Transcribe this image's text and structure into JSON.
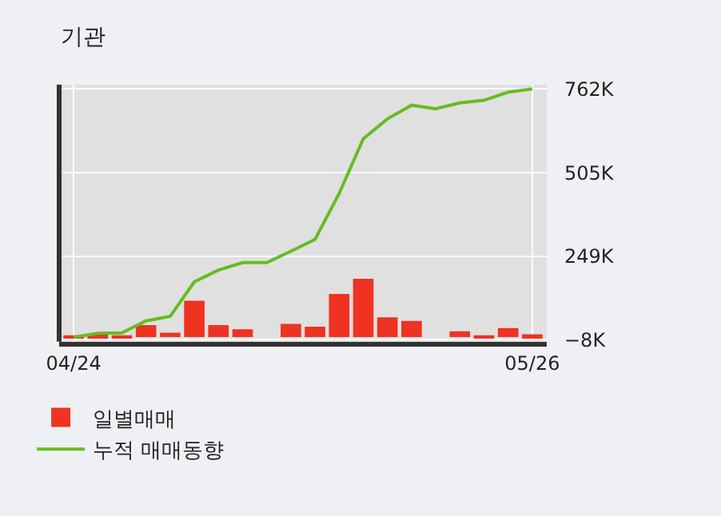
{
  "chart_data": {
    "type": "bar",
    "title": "기관",
    "categories": [
      "04/24",
      null,
      null,
      null,
      null,
      null,
      null,
      null,
      null,
      null,
      null,
      null,
      null,
      null,
      null,
      null,
      null,
      null,
      null,
      "05/26"
    ],
    "series": [
      {
        "name": "일별매매",
        "color": "#ee3322",
        "values": [
          6,
          9,
          6,
          37,
          14,
          112,
          37,
          24,
          0,
          41,
          32,
          133,
          179,
          61,
          50,
          0,
          18,
          6,
          28,
          9
        ]
      },
      {
        "name": "누적 매매동향",
        "type": "line",
        "color": "#66bb22",
        "values": [
          0,
          12,
          13,
          50,
          64,
          170,
          206,
          229,
          229,
          264,
          300,
          441,
          609,
          670,
          712,
          701,
          719,
          727,
          752,
          762
        ]
      }
    ],
    "ylim": [
      -14,
      775
    ],
    "yticks": [
      {
        "value": 762,
        "label": "762K"
      },
      {
        "value": 505,
        "label": "505K"
      },
      {
        "value": 249,
        "label": "249K"
      },
      {
        "value": -8,
        "label": "−8K"
      }
    ],
    "grid": true,
    "legend": "bottom",
    "marker": "none",
    "line_style": "solid"
  }
}
